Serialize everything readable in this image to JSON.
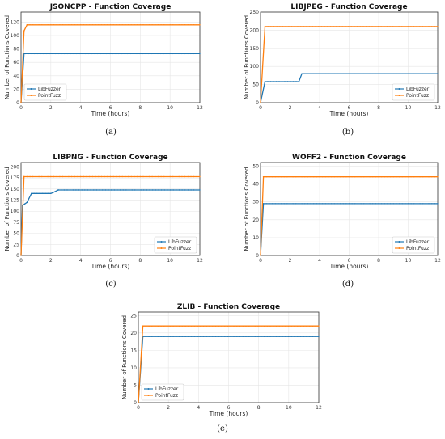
{
  "chart_data": [
    {
      "type": "line",
      "caption": "(a)",
      "title": "JSONCPP - Function Coverage",
      "xlabel": "Time (hours)",
      "ylabel": "Number of Functions Covered",
      "xlim": [
        0,
        12
      ],
      "ylim": [
        0,
        135
      ],
      "xticks": [
        0,
        2,
        4,
        6,
        8,
        10,
        12
      ],
      "yticks": [
        0,
        20,
        40,
        60,
        80,
        100,
        120
      ],
      "grid": true,
      "legend_position": "bottom-left",
      "series": [
        {
          "name": "LibFuzzer",
          "color": "#1f77b4",
          "x": [
            0,
            0.2,
            0.3,
            12
          ],
          "y": [
            0,
            73,
            73,
            73
          ]
        },
        {
          "name": "PointFuzz",
          "color": "#ff7f0e",
          "x": [
            0,
            0.2,
            0.4,
            12
          ],
          "y": [
            0,
            107,
            116,
            116
          ]
        }
      ]
    },
    {
      "type": "line",
      "caption": "(b)",
      "title": "LIBJPEG - Function Coverage",
      "xlabel": "Time (hours)",
      "ylabel": "Number of Functions Covered",
      "xlim": [
        0,
        12
      ],
      "ylim": [
        0,
        250
      ],
      "xticks": [
        0,
        2,
        4,
        6,
        8,
        10,
        12
      ],
      "yticks": [
        0,
        50,
        100,
        150,
        200,
        250
      ],
      "grid": true,
      "legend_position": "bottom-right",
      "series": [
        {
          "name": "LibFuzzer",
          "color": "#1f77b4",
          "x": [
            0,
            0.3,
            2.6,
            2.8,
            12
          ],
          "y": [
            0,
            58,
            58,
            80,
            80
          ]
        },
        {
          "name": "PointFuzz",
          "color": "#ff7f0e",
          "x": [
            0,
            0.3,
            12
          ],
          "y": [
            0,
            210,
            210
          ]
        }
      ]
    },
    {
      "type": "line",
      "caption": "(c)",
      "title": "LIBPNG - Function Coverage",
      "xlabel": "Time (hours)",
      "ylabel": "Number of Functions Covered",
      "xlim": [
        0,
        12
      ],
      "ylim": [
        0,
        210
      ],
      "xticks": [
        0,
        2,
        4,
        6,
        8,
        10,
        12
      ],
      "yticks": [
        0,
        25,
        50,
        75,
        100,
        125,
        150,
        175,
        200
      ],
      "grid": true,
      "legend_position": "bottom-right",
      "series": [
        {
          "name": "LibFuzzer",
          "color": "#1f77b4",
          "x": [
            0,
            0.1,
            0.4,
            0.7,
            2.0,
            2.2,
            2.5,
            12
          ],
          "y": [
            0,
            113,
            120,
            140,
            140,
            143,
            148,
            148
          ]
        },
        {
          "name": "PointFuzz",
          "color": "#ff7f0e",
          "x": [
            0,
            0.2,
            12
          ],
          "y": [
            0,
            178,
            178
          ]
        }
      ]
    },
    {
      "type": "line",
      "caption": "(d)",
      "title": "WOFF2 - Function Coverage",
      "xlabel": "Time (hours)",
      "ylabel": "Number of Functions Covered",
      "xlim": [
        0,
        12
      ],
      "ylim": [
        0,
        52
      ],
      "xticks": [
        0,
        2,
        4,
        6,
        8,
        10,
        12
      ],
      "yticks": [
        0,
        10,
        20,
        30,
        40,
        50
      ],
      "grid": true,
      "legend_position": "bottom-right",
      "series": [
        {
          "name": "LibFuzzer",
          "color": "#1f77b4",
          "x": [
            0,
            0.2,
            12
          ],
          "y": [
            0,
            29,
            29
          ]
        },
        {
          "name": "PointFuzz",
          "color": "#ff7f0e",
          "x": [
            0,
            0.2,
            12
          ],
          "y": [
            0,
            44,
            44
          ]
        }
      ]
    },
    {
      "type": "line",
      "caption": "(e)",
      "title": "ZLIB - Function Coverage",
      "xlabel": "Time (hours)",
      "ylabel": "Number of Functions Covered",
      "xlim": [
        0,
        12
      ],
      "ylim": [
        0,
        26
      ],
      "xticks": [
        0,
        2,
        4,
        6,
        8,
        10,
        12
      ],
      "yticks": [
        0,
        5,
        10,
        15,
        20,
        25
      ],
      "grid": true,
      "legend_position": "bottom-left",
      "series": [
        {
          "name": "LibFuzzer",
          "color": "#1f77b4",
          "x": [
            0,
            0.3,
            12
          ],
          "y": [
            0,
            19,
            19
          ]
        },
        {
          "name": "PointFuzz",
          "color": "#ff7f0e",
          "x": [
            0,
            0.3,
            12
          ],
          "y": [
            0,
            22,
            22
          ]
        }
      ]
    }
  ]
}
